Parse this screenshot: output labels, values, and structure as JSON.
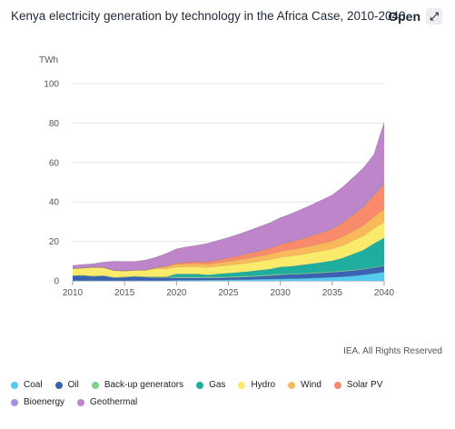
{
  "header": {
    "title": "Kenya electricity generation by technology in the Africa Case, 2010-2040",
    "open_label": "Open",
    "open_icon": "external-arrow-icon"
  },
  "credit": "IEA. All Rights Reserved",
  "chart_data": {
    "type": "area",
    "stacked": true,
    "ylabel": "TWh",
    "xlim": [
      2010,
      2040
    ],
    "ylim": [
      0,
      100
    ],
    "x_ticks": [
      "2010",
      "2015",
      "2020",
      "2025",
      "2030",
      "2035",
      "2040"
    ],
    "y_ticks": [
      "0",
      "20",
      "40",
      "60",
      "80",
      "100"
    ],
    "grid": true,
    "legend_position": "bottom",
    "x": [
      2010,
      2011,
      2012,
      2013,
      2014,
      2015,
      2016,
      2017,
      2018,
      2019,
      2020,
      2021,
      2022,
      2023,
      2024,
      2025,
      2026,
      2027,
      2028,
      2029,
      2030,
      2031,
      2032,
      2033,
      2034,
      2035,
      2036,
      2037,
      2038,
      2039,
      2040
    ],
    "series": [
      {
        "name": "Coal",
        "color": "#56c9ef",
        "values": [
          0.2,
          0.2,
          0.2,
          0.2,
          0.2,
          0.2,
          0.2,
          0.2,
          0.2,
          0.2,
          0.3,
          0.3,
          0.3,
          0.4,
          0.4,
          0.5,
          0.6,
          0.7,
          0.8,
          0.9,
          1.0,
          1.1,
          1.2,
          1.4,
          1.6,
          1.8,
          2.1,
          2.5,
          3.0,
          3.7,
          4.5
        ]
      },
      {
        "name": "Oil",
        "color": "#3b62b2",
        "values": [
          2.2,
          2.4,
          2.0,
          2.2,
          1.3,
          1.5,
          1.8,
          1.6,
          1.4,
          1.4,
          1.2,
          1.2,
          1.2,
          1.1,
          1.1,
          1.1,
          1.2,
          1.3,
          1.5,
          1.7,
          2.0,
          2.1,
          2.2,
          2.3,
          2.4,
          2.5,
          2.6,
          2.7,
          2.8,
          2.9,
          3.0
        ]
      },
      {
        "name": "Back-up generators",
        "color": "#7fd08a",
        "values": [
          0.3,
          0.3,
          0.3,
          0.3,
          0.3,
          0.3,
          0.4,
          0.4,
          0.4,
          0.5,
          0.5,
          0.5,
          0.5,
          0.5,
          0.5,
          0.5,
          0.5,
          0.5,
          0.5,
          0.5,
          0.5,
          0.4,
          0.4,
          0.4,
          0.4,
          0.4,
          0.4,
          0.4,
          0.3,
          0.3,
          0.3
        ]
      },
      {
        "name": "Gas",
        "color": "#1fae9e",
        "values": [
          0,
          0,
          0,
          0,
          0,
          0,
          0,
          0,
          0,
          0,
          1.5,
          1.5,
          1.5,
          1.0,
          1.5,
          1.8,
          2.0,
          2.3,
          2.6,
          2.9,
          3.5,
          3.8,
          4.2,
          4.6,
          5.0,
          5.5,
          6.5,
          8.0,
          9.5,
          12.0,
          14.0
        ]
      },
      {
        "name": "Hydro",
        "color": "#faeb6b",
        "values": [
          3.5,
          3.6,
          4.4,
          4.0,
          3.4,
          3.0,
          3.0,
          3.2,
          4.2,
          4.0,
          3.5,
          3.6,
          3.7,
          3.8,
          3.9,
          4.0,
          4.2,
          4.4,
          4.6,
          4.8,
          5.0,
          5.2,
          5.4,
          5.6,
          5.8,
          6.0,
          6.4,
          6.8,
          7.2,
          7.6,
          8.0
        ]
      },
      {
        "name": "Wind",
        "color": "#f9b95a",
        "values": [
          0.1,
          0.1,
          0.1,
          0.1,
          0.1,
          0.1,
          0.1,
          0.1,
          0.5,
          1.2,
          1.5,
          1.5,
          1.6,
          1.7,
          1.8,
          2.0,
          2.2,
          2.4,
          2.6,
          2.8,
          3.0,
          3.2,
          3.4,
          3.6,
          3.8,
          4.0,
          4.4,
          4.8,
          5.3,
          5.9,
          6.5
        ]
      },
      {
        "name": "Solar PV",
        "color": "#f98a6c",
        "values": [
          0,
          0,
          0,
          0,
          0,
          0,
          0,
          0,
          0.1,
          0.2,
          0.6,
          0.8,
          1.0,
          1.2,
          1.5,
          1.8,
          2.1,
          2.4,
          2.7,
          3.0,
          3.5,
          4.0,
          4.5,
          5.0,
          5.6,
          6.2,
          7.2,
          8.3,
          9.5,
          11.0,
          13.0
        ]
      },
      {
        "name": "Bioenergy",
        "color": "#a98fdc",
        "values": [
          0.1,
          0.1,
          0.1,
          0.1,
          0.1,
          0.1,
          0.1,
          0.1,
          0.1,
          0.1,
          0.1,
          0.2,
          0.2,
          0.2,
          0.2,
          0.3,
          0.3,
          0.3,
          0.4,
          0.4,
          0.5,
          0.5,
          0.6,
          0.6,
          0.7,
          0.8,
          0.9,
          1.0,
          1.1,
          1.3,
          1.5
        ]
      },
      {
        "name": "Geothermal",
        "color": "#bf85cb",
        "values": [
          1.4,
          1.6,
          1.6,
          2.6,
          4.5,
          4.6,
          4.2,
          4.9,
          5.0,
          6.2,
          7.0,
          7.6,
          8.0,
          9.1,
          9.6,
          10.0,
          10.6,
          11.2,
          11.8,
          12.4,
          13.0,
          13.6,
          14.3,
          15.0,
          15.7,
          16.3,
          17.0,
          17.8,
          18.5,
          19.2,
          29.5
        ]
      }
    ]
  }
}
